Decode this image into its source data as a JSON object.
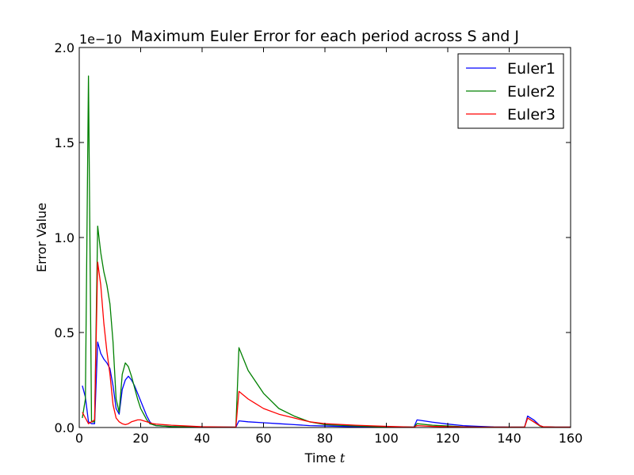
{
  "chart_data": {
    "type": "line",
    "title": "Maximum Euler Error for each period across S and J",
    "xlabel": "Time ",
    "xlabel_italic": "t",
    "ylabel": "Error Value",
    "y_offset_label": "1e−10",
    "xlim": [
      0,
      160
    ],
    "ylim": [
      0,
      2.0
    ],
    "x_ticks": [
      0,
      20,
      40,
      60,
      80,
      100,
      120,
      140,
      160
    ],
    "y_ticks": [
      0.0,
      0.5,
      1.0,
      1.5,
      2.0
    ],
    "x_tick_labels": [
      "0",
      "20",
      "40",
      "60",
      "80",
      "100",
      "120",
      "140",
      "160"
    ],
    "y_tick_labels": [
      "0.0",
      "0.5",
      "1.0",
      "1.5",
      "2.0"
    ],
    "grid": false,
    "legend_position": "top-right",
    "series": [
      {
        "name": "Euler1",
        "color": "#0000ff",
        "x": [
          1,
          2,
          3,
          4,
          5,
          6,
          7,
          8,
          9,
          10,
          11,
          12,
          13,
          14,
          15,
          16,
          17,
          18,
          19,
          20,
          21,
          22,
          23,
          24,
          25,
          30,
          35,
          40,
          45,
          50,
          51,
          52,
          55,
          60,
          65,
          70,
          75,
          80,
          90,
          100,
          109,
          110,
          115,
          120,
          125,
          130,
          135,
          140,
          145,
          146,
          148,
          150,
          151,
          155,
          160
        ],
        "y": [
          0.22,
          0.16,
          0.03,
          0.02,
          0.02,
          0.45,
          0.39,
          0.36,
          0.34,
          0.31,
          0.22,
          0.1,
          0.07,
          0.2,
          0.25,
          0.27,
          0.25,
          0.22,
          0.18,
          0.14,
          0.1,
          0.06,
          0.03,
          0.015,
          0.01,
          0.005,
          0.003,
          0.002,
          0.002,
          0.002,
          0.002,
          0.035,
          0.03,
          0.025,
          0.02,
          0.015,
          0.01,
          0.008,
          0.004,
          0.002,
          0.002,
          0.04,
          0.028,
          0.018,
          0.01,
          0.006,
          0.003,
          0.002,
          0.002,
          0.06,
          0.04,
          0.01,
          0.004,
          0.002,
          0.002
        ]
      },
      {
        "name": "Euler2",
        "color": "#008000",
        "x": [
          1,
          2,
          3,
          4,
          5,
          6,
          7,
          8,
          9,
          10,
          11,
          12,
          13,
          14,
          15,
          16,
          17,
          18,
          19,
          20,
          21,
          22,
          23,
          24,
          25,
          30,
          35,
          40,
          45,
          50,
          51,
          52,
          55,
          60,
          65,
          70,
          75,
          80,
          90,
          100,
          109,
          110,
          115,
          120,
          125,
          130,
          135,
          140,
          145,
          146,
          148,
          150,
          151,
          155,
          160
        ],
        "y": [
          0.05,
          0.15,
          1.85,
          0.03,
          0.03,
          1.06,
          0.92,
          0.82,
          0.75,
          0.65,
          0.45,
          0.15,
          0.08,
          0.28,
          0.34,
          0.32,
          0.27,
          0.21,
          0.15,
          0.1,
          0.07,
          0.04,
          0.02,
          0.015,
          0.01,
          0.005,
          0.003,
          0.002,
          0.002,
          0.002,
          0.002,
          0.42,
          0.3,
          0.18,
          0.1,
          0.06,
          0.03,
          0.015,
          0.008,
          0.004,
          0.002,
          0.02,
          0.012,
          0.008,
          0.004,
          0.002,
          0.002,
          0.002,
          0.002,
          0.05,
          0.03,
          0.008,
          0.003,
          0.002,
          0.002
        ]
      },
      {
        "name": "Euler3",
        "color": "#ff0000",
        "x": [
          1,
          2,
          3,
          4,
          5,
          6,
          7,
          8,
          9,
          10,
          11,
          12,
          13,
          14,
          15,
          16,
          17,
          18,
          19,
          20,
          21,
          22,
          23,
          24,
          25,
          30,
          35,
          40,
          45,
          50,
          51,
          52,
          55,
          60,
          65,
          70,
          75,
          80,
          90,
          100,
          109,
          110,
          115,
          120,
          125,
          130,
          135,
          140,
          145,
          146,
          148,
          150,
          151,
          155,
          160
        ],
        "y": [
          0.08,
          0.05,
          0.02,
          0.03,
          0.04,
          0.87,
          0.75,
          0.55,
          0.4,
          0.28,
          0.12,
          0.05,
          0.03,
          0.02,
          0.015,
          0.02,
          0.03,
          0.035,
          0.04,
          0.04,
          0.035,
          0.03,
          0.025,
          0.02,
          0.018,
          0.012,
          0.008,
          0.004,
          0.003,
          0.002,
          0.002,
          0.19,
          0.15,
          0.1,
          0.07,
          0.05,
          0.03,
          0.02,
          0.012,
          0.006,
          0.002,
          0.01,
          0.006,
          0.004,
          0.003,
          0.002,
          0.002,
          0.002,
          0.002,
          0.05,
          0.03,
          0.01,
          0.004,
          0.002,
          0.002
        ]
      }
    ]
  }
}
